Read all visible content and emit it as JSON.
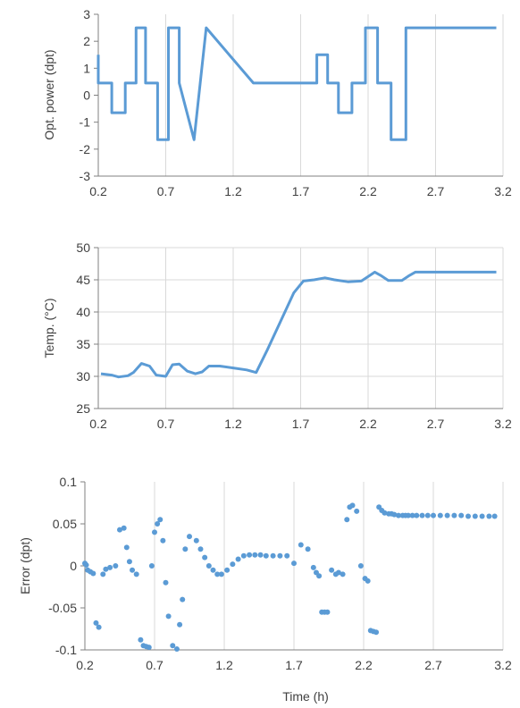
{
  "chart_data": [
    {
      "type": "line",
      "ylabel": "Opt. power (dpt)",
      "xlabel": "",
      "xlim": [
        0.2,
        3.2
      ],
      "ylim": [
        -3,
        3
      ],
      "x_ticks": [
        "0.2",
        "0.7",
        "1.2",
        "1.7",
        "2.2",
        "2.7",
        "3.2"
      ],
      "y_ticks": [
        "-3",
        "-2",
        "-1",
        "0",
        "1",
        "2",
        "3"
      ],
      "grid": "vertical",
      "color": "#5b9bd5",
      "series": [
        {
          "x": [
            0.2,
            0.2,
            0.2,
            0.3,
            0.3,
            0.4,
            0.4,
            0.48,
            0.48,
            0.55,
            0.55,
            0.64,
            0.64,
            0.72,
            0.72,
            0.8,
            0.8,
            0.91,
            1.0,
            1.35,
            1.82,
            1.82,
            1.9,
            1.9,
            1.98,
            1.98,
            2.08,
            2.08,
            2.18,
            2.18,
            2.27,
            2.27,
            2.37,
            2.37,
            2.48,
            2.48,
            3.15
          ],
          "y": [
            1.5,
            0.45,
            0.45,
            0.45,
            -0.65,
            -0.65,
            0.45,
            0.45,
            2.5,
            2.5,
            0.45,
            0.45,
            -1.65,
            -1.65,
            2.5,
            2.5,
            0.45,
            -1.65,
            2.5,
            0.45,
            0.45,
            1.5,
            1.5,
            0.45,
            0.45,
            -0.65,
            -0.65,
            0.45,
            0.45,
            2.5,
            2.5,
            0.45,
            0.45,
            -1.65,
            -1.65,
            2.5,
            2.5
          ]
        }
      ]
    },
    {
      "type": "line",
      "ylabel": "Temp. (°C)",
      "xlabel": "",
      "xlim": [
        0.2,
        3.2
      ],
      "ylim": [
        25,
        50
      ],
      "x_ticks": [
        "0.2",
        "0.7",
        "1.2",
        "1.7",
        "2.2",
        "2.7",
        "3.2"
      ],
      "y_ticks": [
        "25",
        "30",
        "35",
        "40",
        "45",
        "50"
      ],
      "grid": "both",
      "color": "#5b9bd5",
      "series": [
        {
          "x": [
            0.22,
            0.3,
            0.35,
            0.42,
            0.46,
            0.52,
            0.58,
            0.63,
            0.7,
            0.75,
            0.8,
            0.86,
            0.92,
            0.97,
            1.02,
            1.1,
            1.2,
            1.3,
            1.37,
            1.45,
            1.55,
            1.65,
            1.72,
            1.8,
            1.88,
            1.95,
            2.05,
            2.15,
            2.2,
            2.25,
            2.3,
            2.35,
            2.45,
            2.5,
            2.55,
            2.7,
            3.15
          ],
          "y": [
            30.4,
            30.2,
            29.9,
            30.1,
            30.6,
            32.0,
            31.6,
            30.2,
            30.0,
            31.8,
            31.9,
            30.8,
            30.4,
            30.7,
            31.6,
            31.6,
            31.3,
            31.0,
            30.6,
            34.0,
            38.5,
            43.0,
            44.8,
            45.0,
            45.3,
            45.0,
            44.7,
            44.8,
            45.5,
            46.2,
            45.6,
            44.9,
            44.9,
            45.6,
            46.2,
            46.2,
            46.2
          ]
        }
      ]
    },
    {
      "type": "scatter",
      "ylabel": "Error (dpt)",
      "xlabel": "Time (h)",
      "xlim": [
        0.2,
        3.2
      ],
      "ylim": [
        -0.1,
        0.1
      ],
      "x_ticks": [
        "0.2",
        "0.7",
        "1.2",
        "1.7",
        "2.2",
        "2.7",
        "3.2"
      ],
      "y_ticks": [
        "-0.1",
        "-0.05",
        "0",
        "0.05",
        "0.1"
      ],
      "grid": "vertical",
      "color": "#5b9bd5",
      "series": [
        {
          "x": [
            0.2,
            0.21,
            0.22,
            0.24,
            0.26,
            0.28,
            0.3,
            0.33,
            0.35,
            0.38,
            0.42,
            0.45,
            0.48,
            0.5,
            0.52,
            0.54,
            0.57,
            0.6,
            0.62,
            0.64,
            0.66,
            0.68,
            0.7,
            0.72,
            0.74,
            0.76,
            0.78,
            0.8,
            0.83,
            0.86,
            0.88,
            0.9,
            0.92,
            0.95,
            1.0,
            1.03,
            1.06,
            1.09,
            1.12,
            1.15,
            1.18,
            1.22,
            1.26,
            1.3,
            1.34,
            1.38,
            1.42,
            1.46,
            1.5,
            1.55,
            1.6,
            1.65,
            1.7,
            1.75,
            1.8,
            1.84,
            1.86,
            1.88,
            1.9,
            1.92,
            1.94,
            1.97,
            2.0,
            2.02,
            2.05,
            2.08,
            2.1,
            2.12,
            2.15,
            2.18,
            2.21,
            2.23,
            2.25,
            2.27,
            2.29,
            2.31,
            2.33,
            2.35,
            2.38,
            2.4,
            2.42,
            2.45,
            2.48,
            2.5,
            2.52,
            2.55,
            2.58,
            2.62,
            2.66,
            2.7,
            2.75,
            2.8,
            2.85,
            2.9,
            2.95,
            3.0,
            3.05,
            3.1,
            3.14
          ],
          "y": [
            0.003,
            0.001,
            -0.005,
            -0.007,
            -0.009,
            -0.068,
            -0.073,
            -0.01,
            -0.004,
            -0.002,
            0.0,
            0.043,
            0.045,
            0.022,
            0.005,
            -0.005,
            -0.01,
            -0.088,
            -0.095,
            -0.096,
            -0.097,
            0.0,
            0.04,
            0.05,
            0.055,
            0.03,
            -0.02,
            -0.06,
            -0.095,
            -0.099,
            -0.07,
            -0.04,
            0.02,
            0.035,
            0.03,
            0.02,
            0.01,
            0.0,
            -0.005,
            -0.01,
            -0.01,
            -0.005,
            0.002,
            0.008,
            0.012,
            0.013,
            0.013,
            0.013,
            0.012,
            0.012,
            0.012,
            0.012,
            0.003,
            0.025,
            0.02,
            -0.002,
            -0.008,
            -0.012,
            -0.055,
            -0.055,
            -0.055,
            -0.005,
            -0.01,
            -0.008,
            -0.01,
            0.055,
            0.07,
            0.072,
            0.065,
            0.0,
            -0.015,
            -0.018,
            -0.077,
            -0.078,
            -0.079,
            0.07,
            0.066,
            0.063,
            0.062,
            0.062,
            0.061,
            0.06,
            0.06,
            0.06,
            0.06,
            0.06,
            0.06,
            0.06,
            0.06,
            0.06,
            0.06,
            0.06,
            0.06,
            0.06,
            0.059,
            0.059,
            0.059,
            0.059,
            0.059
          ]
        }
      ]
    }
  ]
}
